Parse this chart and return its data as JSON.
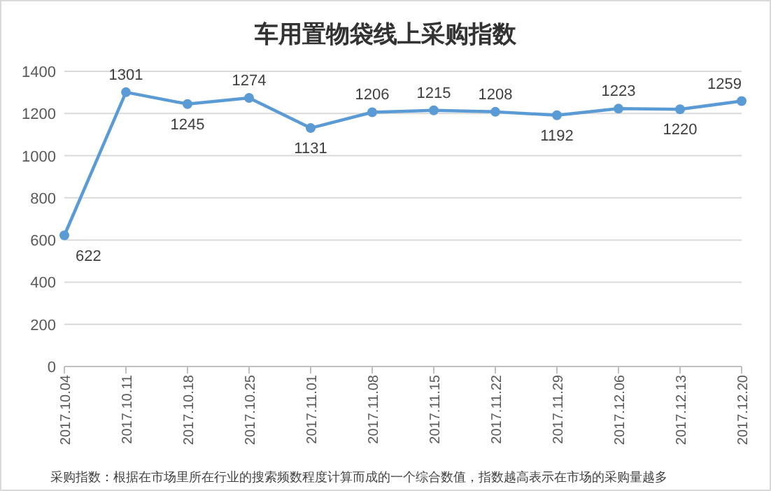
{
  "chart_data": {
    "type": "line",
    "title": "车用置物袋线上采购指数",
    "categories": [
      "2017.10.04",
      "2017.10.11",
      "2017.10.18",
      "2017.10.25",
      "2017.11.01",
      "2017.11.08",
      "2017.11.15",
      "2017.11.22",
      "2017.11.29",
      "2017.12.06",
      "2017.12.13",
      "2017.12.20"
    ],
    "series": [
      {
        "color": "#5b9bd5",
        "values": [
          622,
          1301,
          1245,
          1274,
          1131,
          1206,
          1215,
          1208,
          1192,
          1223,
          1220,
          1259
        ]
      }
    ],
    "ylim": [
      0,
      1400
    ],
    "yticks": [
      0,
      200,
      400,
      600,
      800,
      1000,
      1200,
      1400
    ],
    "grid": "y",
    "marker": "circle",
    "data_labels": true,
    "annotations": [
      "采购指数：根据在市场里所在行业的搜索频数程度计算而成的一个综合数值，指数越高表示在市场的采购量越多"
    ]
  }
}
